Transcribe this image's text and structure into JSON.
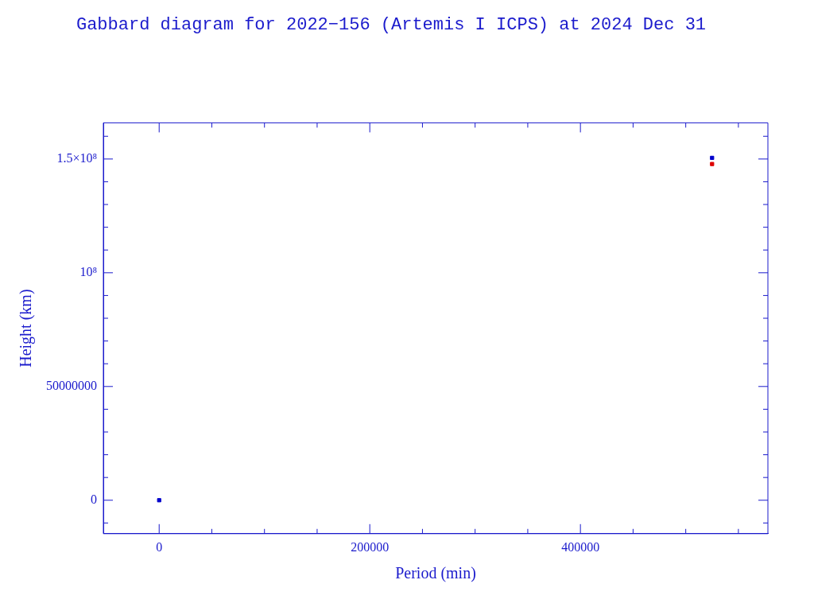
{
  "chart_data": {
    "type": "scatter",
    "title": "Gabbard diagram for 2022−156 (Artemis I ICPS) at 2024 Dec 31",
    "xlabel": "Period (min)",
    "ylabel": "Height (km)",
    "marker": "square",
    "series": [
      {
        "color": "#0000cc",
        "values": [
          150500000,
          0
        ]
      },
      {
        "color": "#dd0000",
        "values": [
          147800000,
          null
        ]
      }
    ],
    "x": [
      525000,
      0
    ],
    "xlim": [
      -53000,
      578000
    ],
    "ylim": [
      -14700000,
      165900000
    ],
    "xticks": [
      0,
      {
        "value": 50000,
        "label": null
      },
      {
        "value": 100000,
        "label": null
      },
      {
        "value": 150000,
        "label": null
      },
      200000,
      {
        "value": 250000,
        "label": null
      },
      {
        "value": 300000,
        "label": null
      },
      {
        "value": 350000,
        "label": null
      },
      400000,
      {
        "value": 450000,
        "label": null
      },
      {
        "value": 500000,
        "label": null
      },
      {
        "value": 550000,
        "label": null
      }
    ],
    "yticks": [
      {
        "value": -10000000,
        "label": null
      },
      0,
      {
        "value": 10000000,
        "label": null
      },
      {
        "value": 20000000,
        "label": null
      },
      {
        "value": 30000000,
        "label": null
      },
      {
        "value": 40000000,
        "label": null
      },
      50000000,
      {
        "value": 60000000,
        "label": null
      },
      {
        "value": 70000000,
        "label": null
      },
      {
        "value": 80000000,
        "label": null
      },
      {
        "value": 90000000,
        "label": null
      },
      {
        "value": 100000000,
        "label": "10⁸"
      },
      {
        "value": 110000000,
        "label": null
      },
      {
        "value": 120000000,
        "label": null
      },
      {
        "value": 130000000,
        "label": null
      },
      {
        "value": 140000000,
        "label": null
      },
      {
        "value": 150000000,
        "label": "1.5×10⁸"
      },
      {
        "value": 160000000,
        "label": null
      }
    ]
  }
}
